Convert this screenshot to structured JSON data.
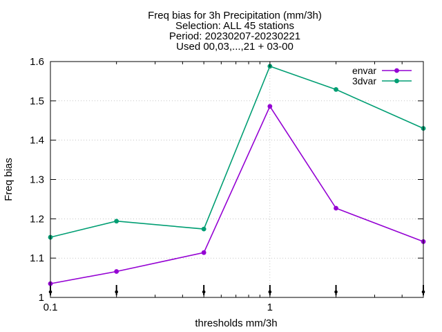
{
  "chart_data": {
    "type": "line",
    "title_lines": [
      "Freq bias  for 3h Precipitation (mm/3h)",
      "Selection: ALL      45 stations",
      "Period: 20230207-20230221",
      "Used 00,03,...,21 + 03-00"
    ],
    "xlabel": "thresholds mm/3h",
    "ylabel": "Freq bias",
    "x_scale": "log",
    "xlim": [
      0.1,
      5
    ],
    "ylim": [
      1.0,
      1.6
    ],
    "x_ticks": [
      {
        "value": 0.1,
        "label": "0.1"
      },
      {
        "value": 1,
        "label": "1"
      }
    ],
    "y_ticks": [
      {
        "value": 1.0,
        "label": "1"
      },
      {
        "value": 1.1,
        "label": "1.1"
      },
      {
        "value": 1.2,
        "label": "1.2"
      },
      {
        "value": 1.3,
        "label": "1.3"
      },
      {
        "value": 1.4,
        "label": "1.4"
      },
      {
        "value": 1.5,
        "label": "1.5"
      },
      {
        "value": 1.6,
        "label": "1.6"
      }
    ],
    "x": [
      0.1,
      0.2,
      0.5,
      1,
      2,
      5
    ],
    "series": [
      {
        "name": "envar",
        "color": "#9400d3",
        "values": [
          1.035,
          1.066,
          1.114,
          1.486,
          1.227,
          1.142
        ]
      },
      {
        "name": "3dvar",
        "color": "#009e73",
        "values": [
          1.153,
          1.194,
          1.174,
          1.588,
          1.529,
          1.43
        ]
      }
    ],
    "grid": {
      "x": true,
      "y": true,
      "style": "dotted"
    },
    "legend_position": "top-right",
    "bottom_markers": {
      "x": [
        0.1,
        0.2,
        0.5,
        1,
        2,
        5
      ],
      "symbol": "vertical-bar-dot"
    }
  }
}
